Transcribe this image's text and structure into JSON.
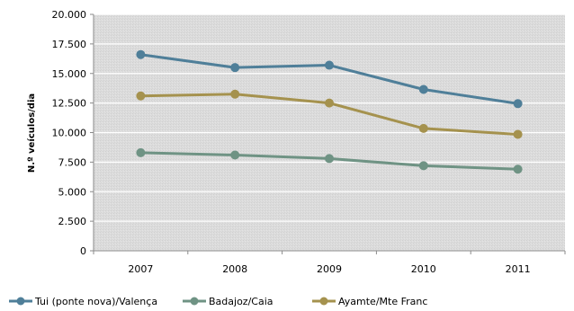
{
  "chart_data": {
    "type": "line",
    "title": "",
    "xlabel": "",
    "ylabel": "N.º veículos/dia",
    "categories": [
      "2007",
      "2008",
      "2009",
      "2010",
      "2011"
    ],
    "ylim": [
      0,
      20000
    ],
    "yticks": [
      0,
      2500,
      5000,
      7500,
      10000,
      12500,
      15000,
      17500,
      20000
    ],
    "ytick_labels": [
      "0",
      "2.500",
      "5.000",
      "7.500",
      "10.000",
      "12.500",
      "15.000",
      "17.500",
      "20.000"
    ],
    "grid": true,
    "legend_position": "bottom",
    "series": [
      {
        "name": "Tui (ponte nova)/Valença",
        "values": [
          16600,
          15500,
          15700,
          13650,
          12450
        ],
        "color": "#4f7f99"
      },
      {
        "name": "Badajoz/Caia",
        "values": [
          8300,
          8100,
          7800,
          7200,
          6900
        ],
        "color": "#6f9384"
      },
      {
        "name": "Ayamte/Mte Franc",
        "values": [
          13100,
          13250,
          12500,
          10350,
          9850
        ],
        "color": "#a5924e"
      }
    ]
  }
}
